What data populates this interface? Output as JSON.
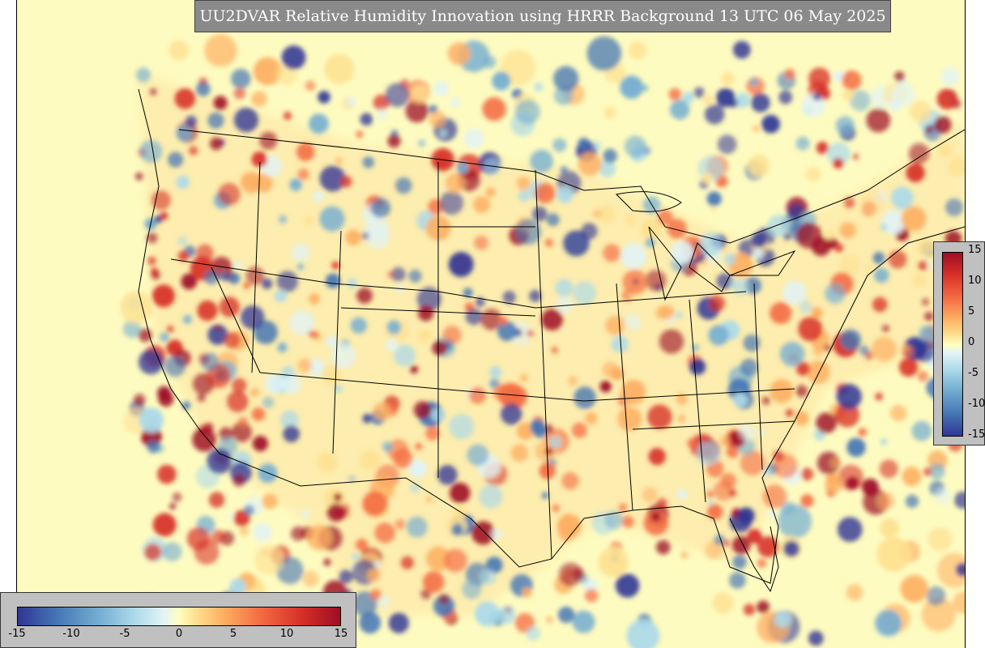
{
  "title": "UU2DVAR Relative Humidity Innovation using HRRR Background 13 UTC 06 May 2025",
  "colorbar": {
    "ticks": [
      "15",
      "10",
      "5",
      "0",
      "-5",
      "-10",
      "-15"
    ],
    "range": [
      -15,
      15
    ],
    "colors": [
      "#313695",
      "#4575b4",
      "#74add1",
      "#abd9e9",
      "#e0f3f8",
      "#ffffbf",
      "#fee090",
      "#fdae61",
      "#f46d43",
      "#d73027",
      "#9e0d26"
    ]
  },
  "colorbar_horizontal": {
    "ticks": [
      "-15",
      "-10",
      "-5",
      "0",
      "5",
      "10",
      "15"
    ]
  },
  "map": {
    "background_color": "#fefbc0",
    "boundary_color": "#000000"
  }
}
